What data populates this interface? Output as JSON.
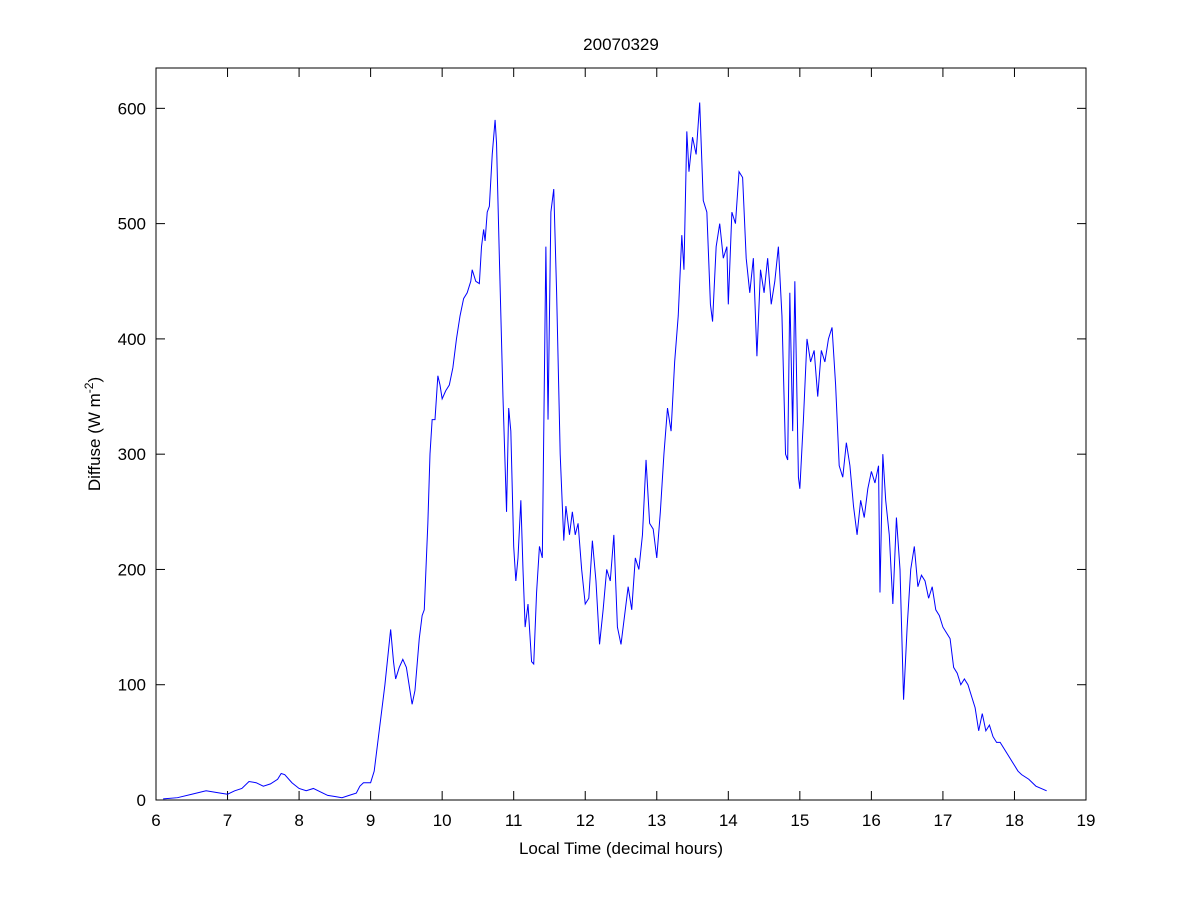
{
  "chart_data": {
    "type": "line",
    "title": "20070329",
    "xlabel": "Local Time (decimal hours)",
    "ylabel": [
      "Diffuse (W m",
      "-2",
      ")"
    ],
    "xlim": [
      6,
      19
    ],
    "xticks": [
      6,
      7,
      8,
      9,
      10,
      11,
      12,
      13,
      14,
      15,
      16,
      17,
      18,
      19
    ],
    "ylim": [
      0,
      635
    ],
    "yticks": [
      0,
      100,
      200,
      300,
      400,
      500,
      600
    ],
    "x": [
      6.1,
      6.3,
      6.5,
      6.7,
      6.9,
      7.0,
      7.1,
      7.2,
      7.3,
      7.4,
      7.5,
      7.6,
      7.7,
      7.75,
      7.8,
      7.9,
      8.0,
      8.1,
      8.2,
      8.3,
      8.4,
      8.5,
      8.6,
      8.7,
      8.8,
      8.85,
      8.9,
      9.0,
      9.05,
      9.1,
      9.15,
      9.2,
      9.25,
      9.28,
      9.32,
      9.35,
      9.4,
      9.45,
      9.5,
      9.55,
      9.58,
      9.62,
      9.68,
      9.72,
      9.75,
      9.8,
      9.83,
      9.86,
      9.9,
      9.94,
      9.97,
      10.0,
      10.05,
      10.1,
      10.15,
      10.2,
      10.25,
      10.3,
      10.35,
      10.4,
      10.42,
      10.47,
      10.52,
      10.55,
      10.58,
      10.6,
      10.63,
      10.66,
      10.7,
      10.74,
      10.76,
      10.8,
      10.85,
      10.9,
      10.93,
      10.96,
      11.0,
      11.03,
      11.06,
      11.1,
      11.13,
      11.16,
      11.2,
      11.25,
      11.28,
      11.32,
      11.36,
      11.4,
      11.45,
      11.48,
      11.52,
      11.56,
      11.6,
      11.65,
      11.7,
      11.73,
      11.78,
      11.82,
      11.86,
      11.9,
      11.95,
      12.0,
      12.05,
      12.1,
      12.15,
      12.2,
      12.25,
      12.3,
      12.35,
      12.4,
      12.45,
      12.5,
      12.55,
      12.6,
      12.65,
      12.7,
      12.75,
      12.8,
      12.85,
      12.9,
      12.95,
      13.0,
      13.05,
      13.1,
      13.15,
      13.2,
      13.25,
      13.3,
      13.35,
      13.38,
      13.42,
      13.45,
      13.5,
      13.55,
      13.6,
      13.65,
      13.7,
      13.75,
      13.78,
      13.83,
      13.88,
      13.93,
      13.98,
      14.0,
      14.05,
      14.1,
      14.15,
      14.2,
      14.25,
      14.3,
      14.35,
      14.4,
      14.45,
      14.5,
      14.55,
      14.6,
      14.65,
      14.7,
      14.75,
      14.8,
      14.83,
      14.86,
      14.9,
      14.93,
      14.98,
      15.0,
      15.05,
      15.1,
      15.15,
      15.2,
      15.25,
      15.3,
      15.35,
      15.4,
      15.45,
      15.5,
      15.55,
      15.6,
      15.65,
      15.7,
      15.75,
      15.8,
      15.85,
      15.9,
      15.95,
      16.0,
      16.05,
      16.1,
      16.12,
      16.16,
      16.2,
      16.25,
      16.3,
      16.35,
      16.4,
      16.45,
      16.5,
      16.55,
      16.6,
      16.65,
      16.7,
      16.75,
      16.8,
      16.85,
      16.9,
      16.95,
      17.0,
      17.05,
      17.1,
      17.15,
      17.2,
      17.25,
      17.3,
      17.35,
      17.4,
      17.45,
      17.5,
      17.55,
      17.6,
      17.65,
      17.7,
      17.75,
      17.8,
      17.85,
      17.9,
      17.95,
      18.0,
      18.05,
      18.1,
      18.2,
      18.3,
      18.45
    ],
    "series": [
      {
        "color": "#0000ff",
        "values": [
          1,
          2,
          5,
          8,
          6,
          5,
          8,
          10,
          16,
          15,
          12,
          14,
          18,
          23,
          22,
          15,
          10,
          8,
          10,
          7,
          4,
          3,
          2,
          4,
          6,
          12,
          15,
          15,
          25,
          50,
          75,
          100,
          130,
          148,
          120,
          105,
          115,
          122,
          115,
          95,
          83,
          95,
          140,
          160,
          165,
          240,
          300,
          330,
          330,
          368,
          360,
          348,
          355,
          360,
          375,
          400,
          420,
          435,
          440,
          450,
          460,
          450,
          448,
          480,
          495,
          485,
          510,
          515,
          560,
          590,
          570,
          470,
          350,
          250,
          340,
          320,
          220,
          190,
          210,
          260,
          200,
          150,
          170,
          120,
          118,
          180,
          220,
          210,
          480,
          330,
          510,
          530,
          440,
          300,
          225,
          255,
          230,
          250,
          230,
          240,
          200,
          170,
          175,
          225,
          190,
          135,
          165,
          200,
          190,
          230,
          150,
          135,
          160,
          185,
          165,
          210,
          200,
          230,
          295,
          240,
          235,
          210,
          250,
          300,
          340,
          320,
          380,
          420,
          490,
          460,
          580,
          545,
          575,
          560,
          605,
          520,
          510,
          430,
          415,
          480,
          500,
          470,
          480,
          430,
          510,
          500,
          545,
          540,
          470,
          440,
          470,
          385,
          460,
          440,
          470,
          430,
          450,
          480,
          420,
          300,
          295,
          440,
          320,
          450,
          280,
          270,
          330,
          400,
          380,
          390,
          350,
          390,
          380,
          400,
          410,
          360,
          290,
          280,
          310,
          290,
          255,
          230,
          260,
          245,
          270,
          285,
          275,
          290,
          180,
          300,
          260,
          230,
          170,
          245,
          200,
          87,
          150,
          200,
          220,
          185,
          195,
          190,
          175,
          185,
          165,
          160,
          150,
          145,
          140,
          115,
          110,
          100,
          105,
          100,
          90,
          80,
          60,
          75,
          60,
          65,
          55,
          50,
          50,
          45,
          40,
          35,
          30,
          25,
          22,
          18,
          12,
          8
        ]
      }
    ]
  }
}
